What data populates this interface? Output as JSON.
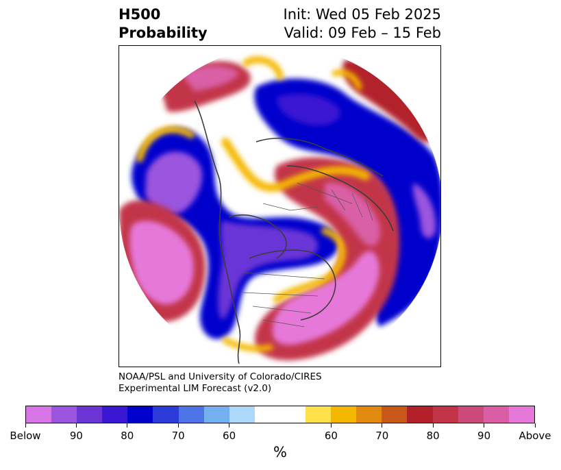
{
  "title": {
    "left_line1": "H500",
    "left_line2": "Probability",
    "right_line1": "Init: Wed 05 Feb 2025",
    "right_line2": "Valid: 09 Feb – 15 Feb"
  },
  "credit": {
    "line1": "NOAA/PSL and University of Colorado/CIRES",
    "line2": "Experimental LIM Forecast (v2.0)"
  },
  "colorbar": {
    "colors": [
      "#d774e6",
      "#9b55de",
      "#6b35d6",
      "#3a18d3",
      "#0000cc",
      "#2b3bd8",
      "#4d74e6",
      "#72b0f0",
      "#acd8fa",
      "#ffffff",
      "#ffe04a",
      "#f5b800",
      "#e08a10",
      "#c8581a",
      "#b2202a",
      "#c23448",
      "#cc4a7a",
      "#d95ea6",
      "#e678d9"
    ],
    "tick_labels": [
      "Below",
      "90",
      "80",
      "70",
      "60",
      "60",
      "70",
      "80",
      "90",
      "Above"
    ],
    "units": "%"
  }
}
